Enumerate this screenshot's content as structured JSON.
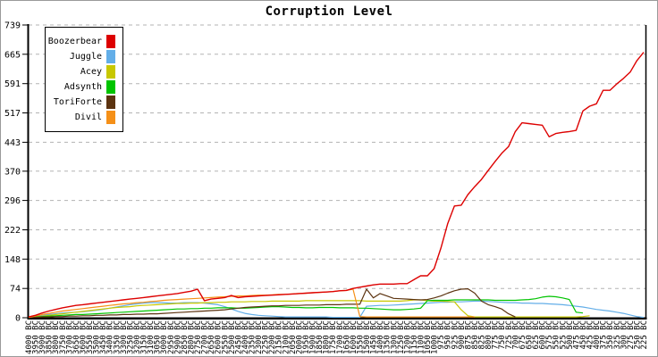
{
  "title": "Corruption Level",
  "chart_data": {
    "type": "line",
    "title": "Corruption Level",
    "xlabel": "",
    "ylabel": "",
    "ylim": [
      0,
      739
    ],
    "yticks": [
      0,
      74,
      148,
      222,
      296,
      370,
      443,
      517,
      591,
      665,
      739
    ],
    "grid": "horizontal-dashed",
    "legend_position": "top-left",
    "axis_color": "#000000",
    "grid_color": "#b3b3b3",
    "x": [
      "4000 BC",
      "3950 BC",
      "3900 BC",
      "3850 BC",
      "3800 BC",
      "3750 BC",
      "3700 BC",
      "3650 BC",
      "3600 BC",
      "3550 BC",
      "3500 BC",
      "3450 BC",
      "3400 BC",
      "3350 BC",
      "3300 BC",
      "3250 BC",
      "3200 BC",
      "3150 BC",
      "3100 BC",
      "3050 BC",
      "3000 BC",
      "2950 BC",
      "2900 BC",
      "2850 BC",
      "2800 BC",
      "2750 BC",
      "2700 BC",
      "2650 BC",
      "2600 BC",
      "2550 BC",
      "2500 BC",
      "2450 BC",
      "2400 BC",
      "2350 BC",
      "2300 BC",
      "2250 BC",
      "2200 BC",
      "2150 BC",
      "2100 BC",
      "2050 BC",
      "2000 BC",
      "1950 BC",
      "1900 BC",
      "1850 BC",
      "1800 BC",
      "1750 BC",
      "1700 BC",
      "1650 BC",
      "1600 BC",
      "1550 BC",
      "1500 BC",
      "1450 BC",
      "1400 BC",
      "1350 BC",
      "1300 BC",
      "1250 BC",
      "1200 BC",
      "1150 BC",
      "1100 BC",
      "1050 BC",
      "1000 BC",
      "975 BC",
      "950 BC",
      "925 BC",
      "900 BC",
      "875 BC",
      "850 BC",
      "825 BC",
      "800 BC",
      "775 BC",
      "750 BC",
      "725 BC",
      "700 BC",
      "675 BC",
      "650 BC",
      "625 BC",
      "600 BC",
      "575 BC",
      "550 BC",
      "525 BC",
      "500 BC",
      "475 BC",
      "450 BC",
      "425 BC",
      "400 BC",
      "375 BC",
      "350 BC",
      "325 BC",
      "300 BC",
      "275 BC",
      "250 BC",
      "225 BC"
    ],
    "series": [
      {
        "name": "Boozerbear",
        "color": "#dd0000",
        "values": [
          2,
          6,
          12,
          17,
          21,
          25,
          28,
          31,
          33,
          35,
          37,
          39,
          41,
          43,
          45,
          47,
          49,
          51,
          53,
          55,
          57,
          59,
          61,
          64,
          67,
          72,
          43,
          47,
          49,
          51,
          56,
          51,
          53,
          54,
          55,
          56,
          57,
          58,
          59,
          60,
          61,
          62,
          63,
          64,
          65,
          66,
          68,
          69,
          74,
          77,
          80,
          83,
          85,
          85,
          85,
          86,
          86,
          96,
          106,
          106,
          124,
          176,
          237,
          282,
          284,
          311,
          331,
          349,
          372,
          394,
          415,
          432,
          470,
          492,
          490,
          488,
          486,
          457,
          465,
          468,
          470,
          473,
          522,
          534,
          540,
          574,
          574,
          590,
          604,
          620,
          649,
          670
        ]
      },
      {
        "name": "Juggle",
        "color": "#63aee8",
        "values": [
          1,
          3,
          6,
          8,
          10,
          12,
          13,
          14,
          15,
          17,
          19,
          21,
          24,
          27,
          30,
          33,
          35,
          37,
          38,
          38,
          38,
          37,
          37,
          38,
          38,
          38,
          37,
          35,
          33,
          28,
          22,
          16,
          11,
          8,
          6,
          5,
          4,
          3,
          2,
          2,
          2,
          2,
          2,
          2,
          2,
          1,
          1,
          1,
          1,
          1,
          29,
          30,
          31,
          31,
          32,
          33,
          34,
          35,
          36,
          37,
          38,
          39,
          39,
          40,
          40,
          41,
          42,
          42,
          41,
          40,
          39,
          38,
          38,
          37,
          37,
          36,
          36,
          35,
          34,
          33,
          31,
          29,
          27,
          24,
          21,
          19,
          17,
          14,
          11,
          7,
          3,
          1
        ]
      },
      {
        "name": "Acey",
        "color": "#c8c800",
        "values": [
          1,
          2,
          4,
          6,
          8,
          10,
          12,
          14,
          16,
          18,
          20,
          22,
          24,
          26,
          27,
          28,
          30,
          31,
          32,
          33,
          34,
          35,
          36,
          36,
          37,
          37,
          38,
          38,
          39,
          39,
          40,
          40,
          40,
          41,
          41,
          41,
          42,
          42,
          42,
          42,
          42,
          43,
          43,
          43,
          43,
          43,
          43,
          43,
          43,
          43,
          42,
          42,
          42,
          42,
          42,
          42,
          43,
          45,
          45,
          43,
          42,
          42,
          41,
          40,
          20,
          5,
          2,
          2,
          2,
          2,
          2,
          2,
          2,
          2,
          2,
          2,
          2,
          2,
          2,
          2,
          2,
          2,
          3,
          5,
          null,
          null,
          null,
          null,
          null,
          null,
          null,
          null
        ]
      },
      {
        "name": "Adsynth",
        "color": "#00c400",
        "values": [
          1,
          2,
          3,
          4,
          5,
          6,
          7,
          8,
          8,
          9,
          10,
          11,
          12,
          13,
          14,
          15,
          16,
          17,
          18,
          19,
          20,
          21,
          22,
          22,
          23,
          23,
          24,
          24,
          25,
          25,
          25,
          24,
          24,
          25,
          26,
          27,
          28,
          28,
          27,
          26,
          26,
          25,
          25,
          26,
          26,
          26,
          25,
          25,
          25,
          24,
          24,
          23,
          22,
          21,
          20,
          20,
          21,
          22,
          24,
          43,
          44,
          44,
          44,
          45,
          45,
          45,
          45,
          45,
          45,
          44,
          44,
          44,
          44,
          45,
          46,
          48,
          52,
          54,
          53,
          50,
          46,
          14,
          12,
          null,
          null,
          null,
          null,
          null,
          null,
          null,
          null,
          null
        ]
      },
      {
        "name": "ToriForte",
        "color": "#5c3310",
        "values": [
          1,
          1,
          2,
          2,
          3,
          3,
          4,
          4,
          5,
          5,
          6,
          6,
          7,
          7,
          8,
          8,
          9,
          9,
          10,
          10,
          11,
          12,
          13,
          14,
          15,
          16,
          17,
          18,
          19,
          20,
          22,
          24,
          26,
          27,
          28,
          29,
          30,
          30,
          31,
          31,
          31,
          32,
          32,
          32,
          33,
          33,
          33,
          34,
          34,
          34,
          72,
          50,
          61,
          55,
          49,
          48,
          47,
          46,
          45,
          46,
          50,
          55,
          62,
          68,
          72,
          73,
          62,
          42,
          33,
          28,
          22,
          10,
          2,
          null,
          null,
          null,
          null,
          null,
          null,
          null,
          null,
          null,
          null,
          null,
          null,
          null,
          null,
          null,
          null,
          null,
          null,
          null
        ]
      },
      {
        "name": "Divil",
        "color": "#f59018",
        "values": [
          1,
          4,
          8,
          11,
          14,
          17,
          19,
          21,
          23,
          25,
          27,
          29,
          31,
          33,
          35,
          36,
          38,
          39,
          41,
          42,
          44,
          45,
          46,
          47,
          48,
          49,
          50,
          51,
          52,
          53,
          54,
          55,
          55,
          56,
          57,
          57,
          58,
          59,
          59,
          60,
          61,
          62,
          63,
          64,
          65,
          66,
          68,
          69,
          72,
          3,
          2,
          2,
          2,
          2,
          2,
          2,
          2,
          2,
          2,
          2,
          2,
          2,
          2,
          2,
          2,
          2,
          2,
          null,
          null,
          null,
          null,
          null,
          null,
          null,
          null,
          null,
          null,
          null,
          null,
          null,
          null,
          null,
          null,
          null,
          null,
          null,
          null,
          null,
          null,
          null,
          null,
          null
        ]
      }
    ]
  }
}
